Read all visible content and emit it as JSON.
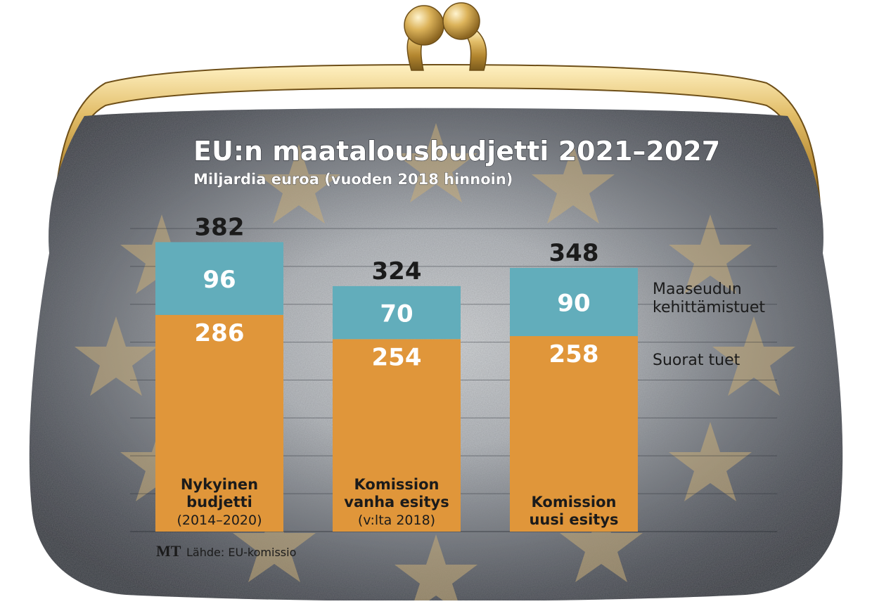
{
  "chart_data": {
    "type": "bar",
    "stacked": true,
    "title": "EU:n maatalousbudjetti 2021–2027",
    "subtitle": "Miljardia euroa (vuoden 2018 hinnoin)",
    "categories": [
      [
        "Nykyinen",
        "budjetti",
        "(2014–2020)"
      ],
      [
        "Komission",
        "vanha esitys",
        "(v:lta 2018)"
      ],
      [
        "Komission",
        "uusi esitys"
      ]
    ],
    "series": [
      {
        "name": "Suorat tuet",
        "values": [
          286,
          254,
          258
        ],
        "color": "#e0963a"
      },
      {
        "name": "Maaseudun kehittämistuet",
        "values": [
          96,
          70,
          90
        ],
        "color": "#62adbb"
      }
    ],
    "legend_lines": [
      [
        "Maaseudun",
        "kehittämistuet"
      ],
      [
        "Suorat tuet"
      ]
    ],
    "totals": [
      "382",
      "324",
      "348"
    ],
    "legend_placement": "right",
    "grid": true,
    "ylim": [
      0,
      400
    ],
    "gridlines": [
      50,
      100,
      150,
      200,
      250,
      300,
      350,
      400
    ]
  },
  "source": {
    "logo": "MT",
    "text": "Lähde: EU-komissio"
  },
  "colors": {
    "purse_body": "#3a3f47",
    "frame_gold": "#c9a24a",
    "star": "#c8ad78"
  }
}
